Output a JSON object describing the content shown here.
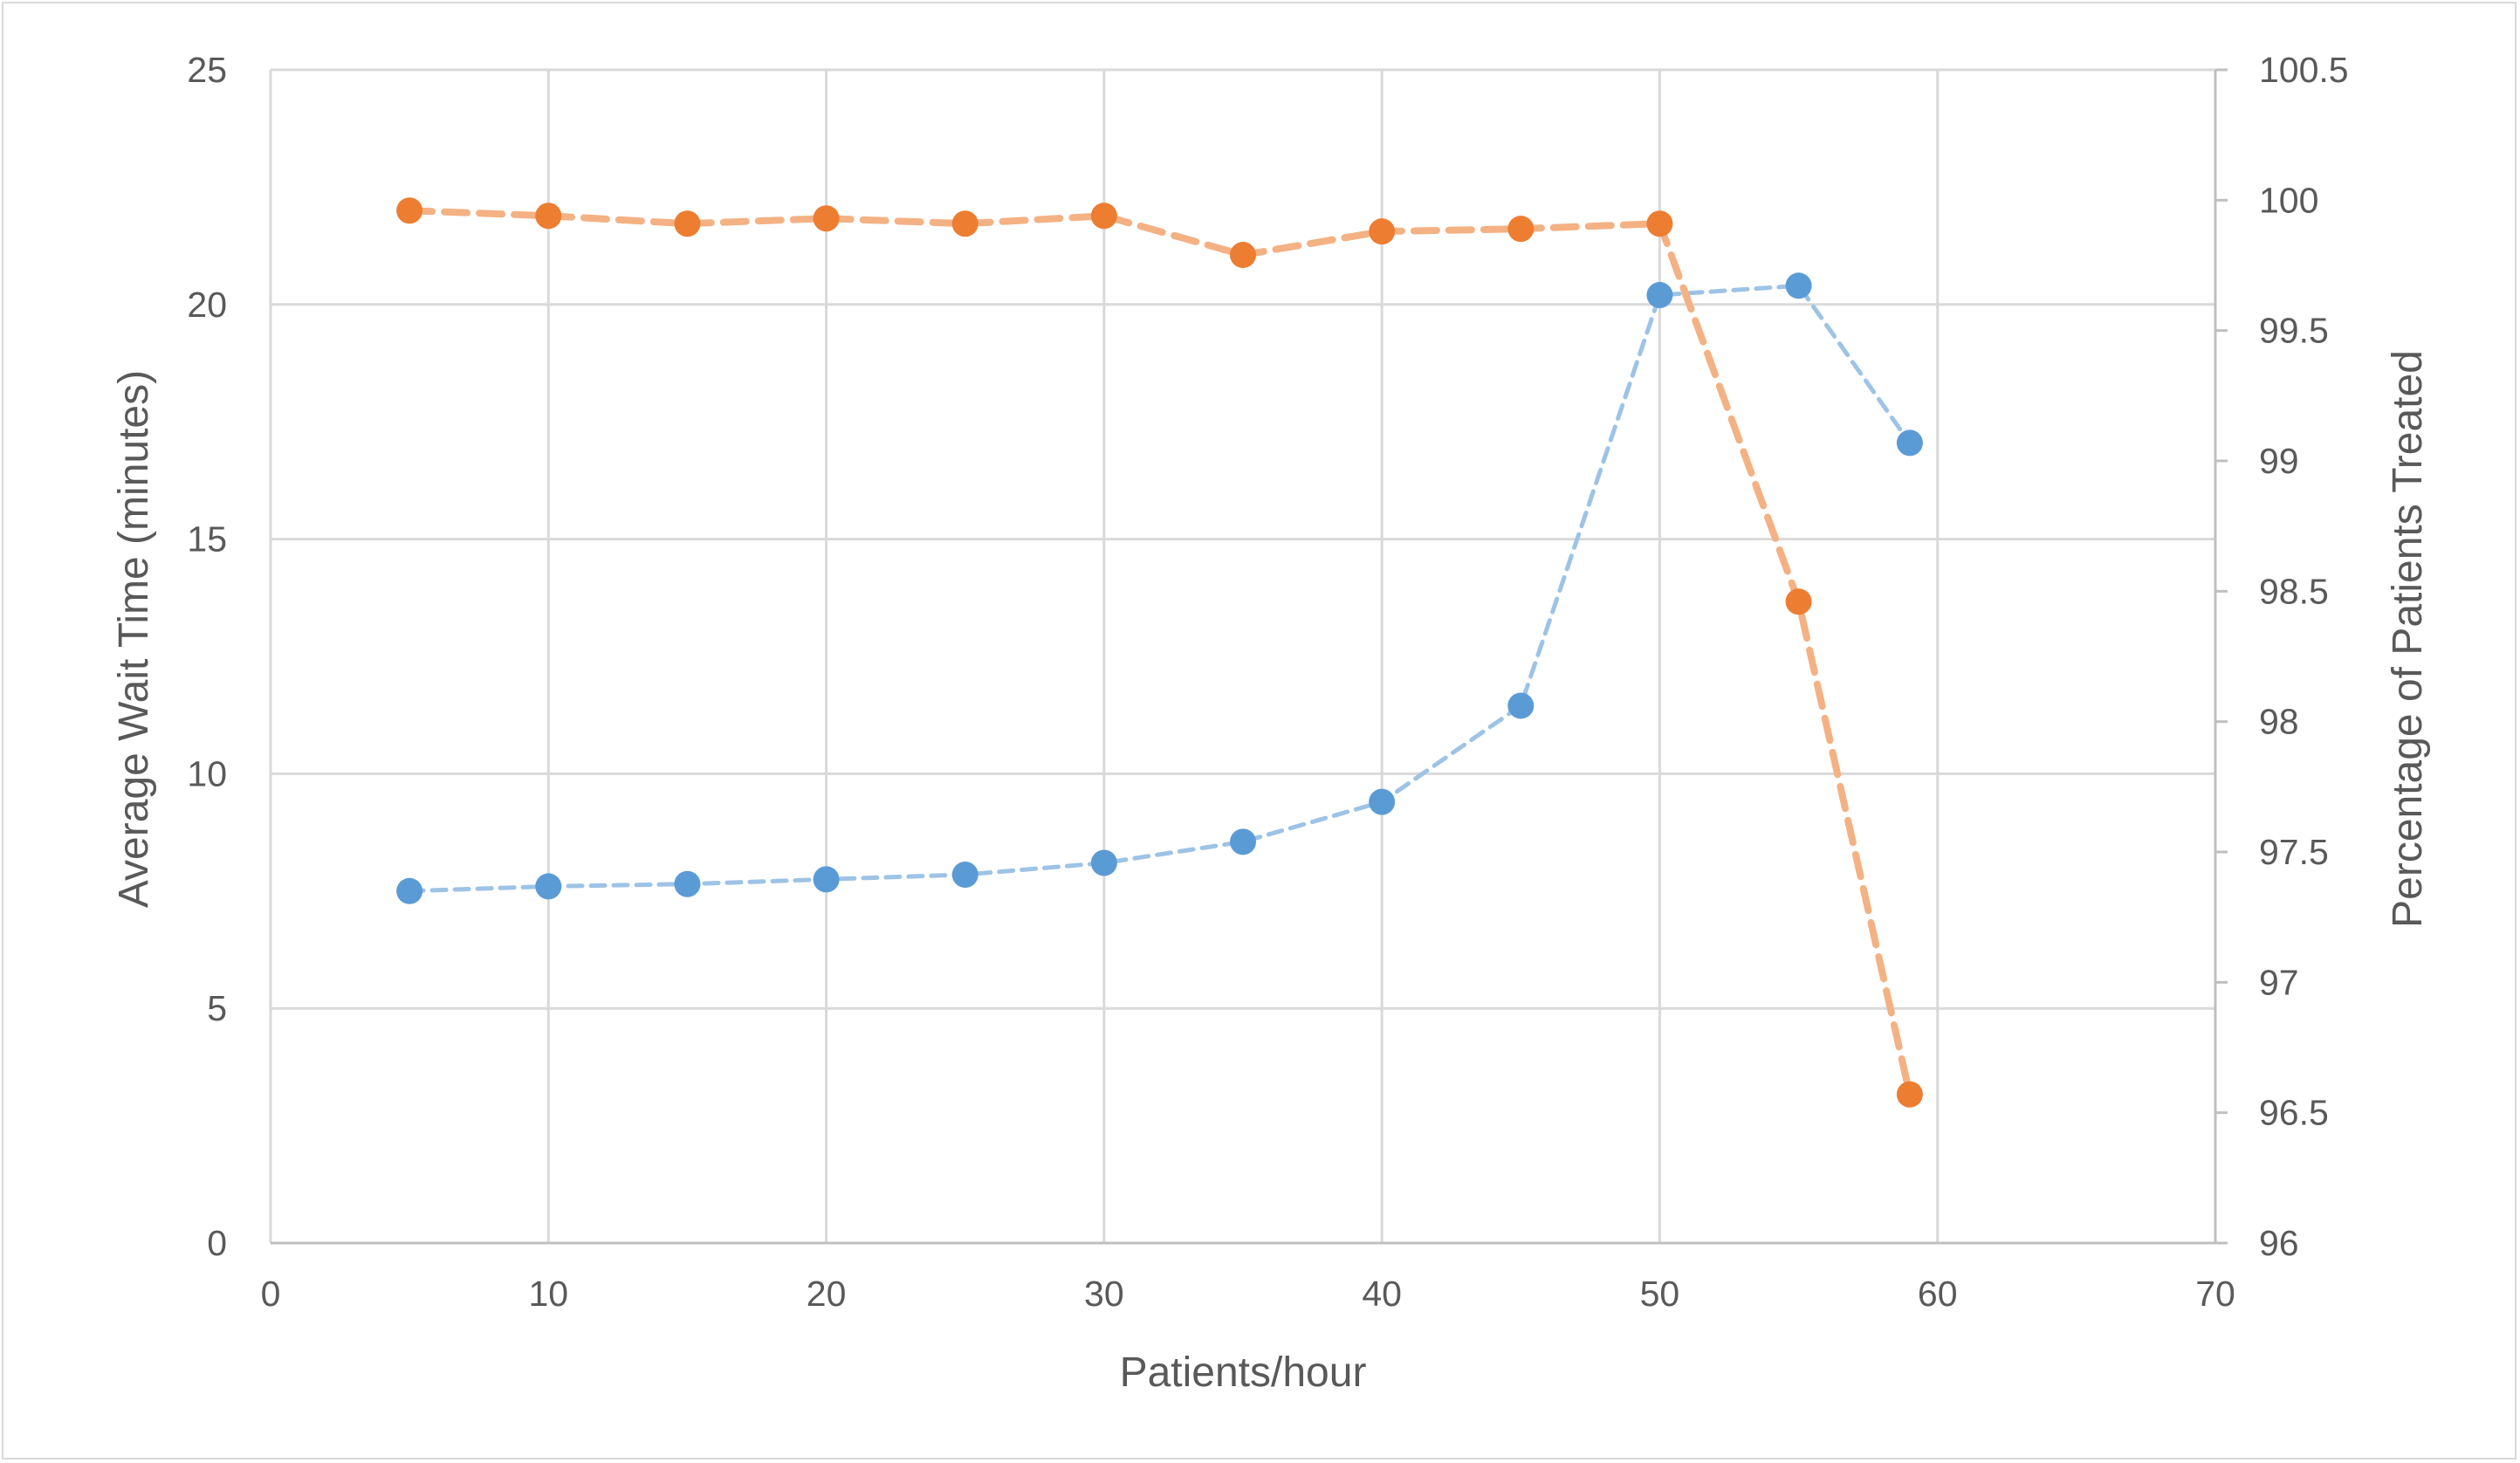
{
  "chart_data": {
    "type": "line",
    "title": "",
    "xlabel": "Patients/hour",
    "ylabel": "Average Wait Time (minutes)",
    "y2label": "Percentage of Patients Treated",
    "xlim": [
      0,
      70
    ],
    "ylim": [
      0,
      25
    ],
    "y2lim": [
      96,
      100.5
    ],
    "x_ticks": [
      "0",
      "10",
      "20",
      "30",
      "40",
      "50",
      "60",
      "70"
    ],
    "y_ticks": [
      "0",
      "5",
      "10",
      "15",
      "20",
      "25"
    ],
    "y2_ticks": [
      "96",
      "96.5",
      "97",
      "97.5",
      "98",
      "98.5",
      "99",
      "99.5",
      "100",
      "100.5"
    ],
    "grid": true,
    "legend": "none",
    "series": [
      {
        "axis": "left",
        "color": "#5b9bd5",
        "x": [
          5,
          10,
          15,
          20,
          25,
          30,
          35,
          40,
          45,
          50,
          55,
          59
        ],
        "values": [
          7.5,
          7.6,
          7.65,
          7.75,
          7.85,
          8.1,
          8.55,
          9.4,
          11.45,
          20.2,
          20.4,
          17.05
        ]
      },
      {
        "axis": "right",
        "color": "#ed7d31",
        "x": [
          5,
          10,
          15,
          20,
          25,
          30,
          35,
          40,
          45,
          50,
          55,
          59
        ],
        "values": [
          99.96,
          99.94,
          99.91,
          99.93,
          99.91,
          99.94,
          99.79,
          99.88,
          99.89,
          99.91,
          98.46,
          96.57
        ]
      }
    ]
  }
}
